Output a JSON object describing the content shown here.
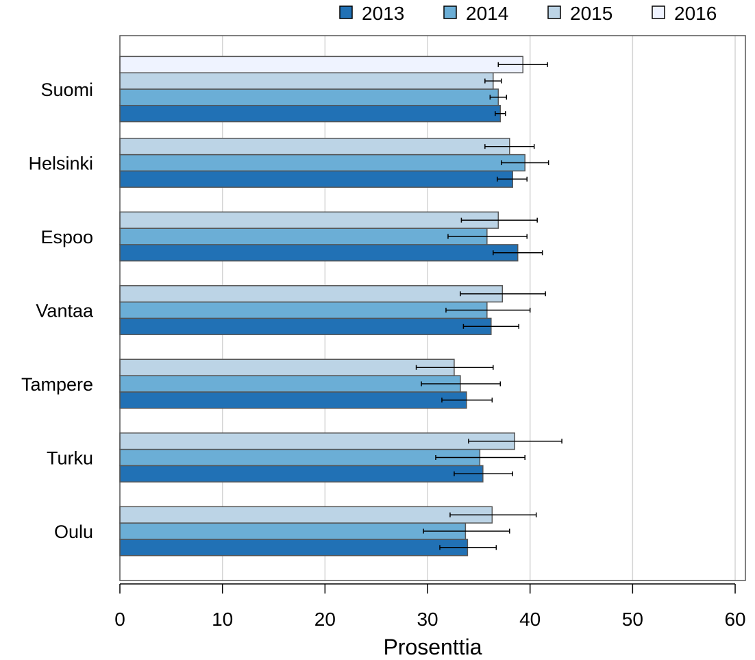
{
  "chart_data": {
    "type": "bar",
    "orientation": "horizontal",
    "xlabel": "Prosenttia",
    "ylabel": "",
    "xlim": [
      0,
      61
    ],
    "xticks": [
      0,
      10,
      20,
      30,
      40,
      50,
      60
    ],
    "grid": "vertical",
    "legend_position": "top-right",
    "categories": [
      "Suomi",
      "Helsinki",
      "Espoo",
      "Vantaa",
      "Tampere",
      "Turku",
      "Oulu"
    ],
    "series": [
      {
        "name": "2013",
        "color": "#2171b5",
        "values": [
          37.1,
          38.3,
          38.8,
          36.2,
          33.8,
          35.4,
          33.9
        ],
        "ci_low": [
          36.6,
          36.8,
          36.4,
          33.5,
          31.4,
          32.6,
          31.2
        ],
        "ci_high": [
          37.6,
          39.7,
          41.2,
          38.9,
          36.3,
          38.3,
          36.7
        ]
      },
      {
        "name": "2014",
        "color": "#6baed6",
        "values": [
          36.9,
          39.5,
          35.8,
          35.8,
          33.2,
          35.1,
          33.7
        ],
        "ci_low": [
          36.1,
          37.2,
          32.0,
          31.8,
          29.4,
          30.8,
          29.6
        ],
        "ci_high": [
          37.7,
          41.8,
          39.7,
          40.0,
          37.1,
          39.5,
          38.0
        ]
      },
      {
        "name": "2015",
        "color": "#bcd4e6",
        "values": [
          36.4,
          38.0,
          36.9,
          37.3,
          32.6,
          38.5,
          36.3
        ],
        "ci_low": [
          35.6,
          35.6,
          33.3,
          33.2,
          28.9,
          34.0,
          32.2
        ],
        "ci_high": [
          37.2,
          40.4,
          40.7,
          41.5,
          36.4,
          43.1,
          40.6
        ]
      },
      {
        "name": "2016",
        "color": "#eff3ff",
        "values": [
          39.3,
          null,
          null,
          null,
          null,
          null,
          null
        ],
        "ci_low": [
          36.9,
          null,
          null,
          null,
          null,
          null,
          null
        ],
        "ci_high": [
          41.7,
          null,
          null,
          null,
          null,
          null,
          null
        ]
      }
    ]
  }
}
